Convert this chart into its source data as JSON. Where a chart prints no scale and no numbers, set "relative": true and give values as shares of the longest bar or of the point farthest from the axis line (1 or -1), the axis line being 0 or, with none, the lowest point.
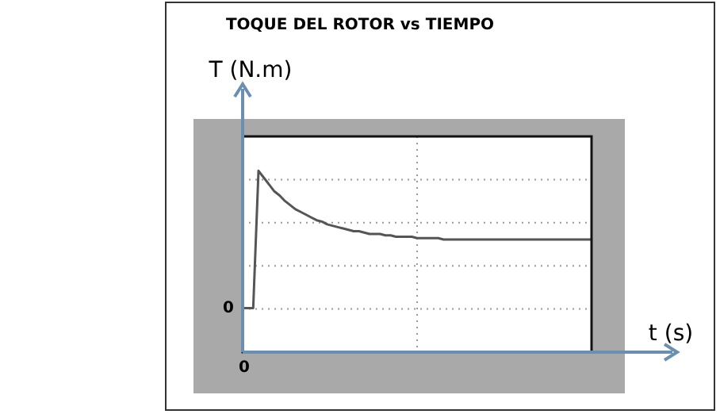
{
  "chart_data": {
    "type": "line",
    "title": "TOQUE DEL ROTOR vs TIEMPO",
    "xlabel": "t (s)",
    "ylabel": "T (N.m)",
    "relative": true,
    "grid": true,
    "legend": false,
    "marker": "none",
    "line_style": "solid",
    "annotations": [
      "0",
      "0"
    ],
    "categories": [
      null,
      null,
      null,
      null,
      null,
      null,
      null,
      null,
      null,
      null,
      null,
      null,
      null,
      null,
      null,
      null,
      null,
      null,
      null,
      null,
      null,
      null,
      null,
      null,
      null,
      null,
      null,
      null,
      null,
      null,
      null,
      null,
      null,
      null,
      null,
      null,
      null,
      null,
      null,
      null,
      null,
      null,
      null,
      null,
      null,
      null,
      null,
      null,
      null,
      null,
      null,
      null,
      null,
      null,
      null,
      null,
      null,
      null,
      null,
      null,
      null,
      null,
      null,
      null,
      null,
      null,
      null
    ],
    "series": [
      {
        "color": "#555555",
        "values": [
          0,
          0,
          0,
          1,
          0.95,
          0.9,
          0.85,
          0.82,
          0.78,
          0.75,
          0.72,
          0.7,
          0.68,
          0.66,
          0.64,
          0.63,
          0.61,
          0.6,
          0.59,
          0.58,
          0.57,
          0.56,
          0.56,
          0.55,
          0.54,
          0.54,
          0.54,
          0.53,
          0.53,
          0.52,
          0.52,
          0.52,
          0.52,
          0.51,
          0.51,
          0.51,
          0.51,
          0.51,
          0.5,
          0.5,
          0.5,
          0.5,
          0.5,
          0.5,
          0.5,
          0.5,
          0.5,
          0.5,
          0.5,
          0.5,
          0.5,
          0.5,
          0.5,
          0.5,
          0.5,
          0.5,
          0.5,
          0.5,
          0.5,
          0.5,
          0.5,
          0.5,
          0.5,
          0.5,
          0.5,
          0.5,
          0.5
        ]
      }
    ]
  }
}
